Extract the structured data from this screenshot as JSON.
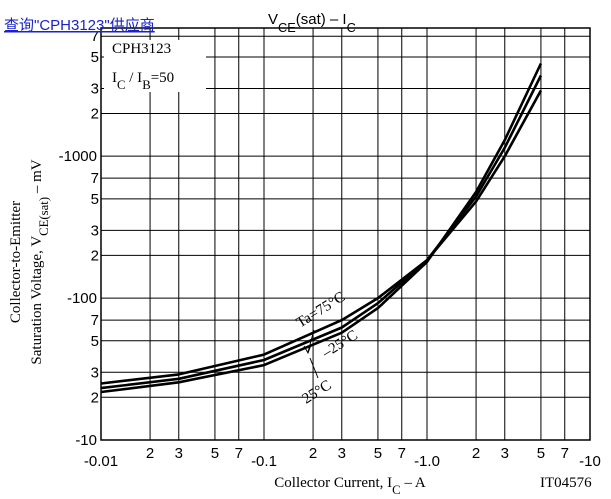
{
  "link": "查询\"CPH3123\"供应商",
  "chart_data": {
    "type": "line",
    "title": [
      "V",
      "CE",
      "(sat)  –  I",
      "C"
    ],
    "annotation": [
      "CPH3123"
    ],
    "condition": [
      "I",
      "C",
      " / I",
      "B",
      "=50"
    ],
    "y_label": [
      "Collector-to-Emitter"
    ],
    "y_label_2": [
      "Saturation Voltage, V",
      "CE(sat)",
      "  –  mV"
    ],
    "x_label": [
      "Collector Current, I",
      "C",
      "  –  A"
    ],
    "figure_code": "IT04576",
    "log_x": true,
    "log_y": true,
    "grid": true,
    "xlim": [
      -0.01,
      -10
    ],
    "xticks": [
      -0.01,
      {
        "value": -0.02,
        "label": "2"
      },
      {
        "value": -0.03,
        "label": "3"
      },
      {
        "value": -0.05,
        "label": "5"
      },
      {
        "value": -0.07,
        "label": "7"
      },
      -0.1,
      {
        "value": -0.2,
        "label": "2"
      },
      {
        "value": -0.3,
        "label": "3"
      },
      {
        "value": -0.5,
        "label": "5"
      },
      {
        "value": -0.7,
        "label": "7"
      },
      {
        "value": -1,
        "label": "-1.0"
      },
      {
        "value": -2,
        "label": "2"
      },
      {
        "value": -3,
        "label": "3"
      },
      {
        "value": -5,
        "label": "5"
      },
      {
        "value": -7,
        "label": "7"
      },
      -10
    ],
    "ylim": [
      -10,
      -8000
    ],
    "yticks": [
      -10,
      {
        "value": -20,
        "label": "2"
      },
      {
        "value": -30,
        "label": "3"
      },
      {
        "value": -50,
        "label": "5"
      },
      {
        "value": -70,
        "label": "7"
      },
      -100,
      {
        "value": -200,
        "label": "2"
      },
      {
        "value": -300,
        "label": "3"
      },
      {
        "value": -500,
        "label": "5"
      },
      {
        "value": -700,
        "label": "7"
      },
      -1000,
      {
        "value": -2000,
        "label": "2"
      },
      {
        "value": -3000,
        "label": "3"
      },
      {
        "value": -5000,
        "label": "5"
      },
      {
        "value": -7000,
        "label": "7"
      }
    ],
    "x": [
      -0.01,
      -0.03,
      -0.1,
      -0.3,
      -0.5,
      -1,
      -2,
      -3,
      -5
    ],
    "series": [
      {
        "name": "Ta=75°C",
        "color": "#000000",
        "values": [
          -25,
          -29,
          -40,
          -70,
          -100,
          -185,
          -480,
          -1000,
          -2900
        ]
      },
      {
        "name": "–25°C",
        "color": "#000000",
        "values": [
          -21.8,
          -25.5,
          -33.7,
          -57,
          -85,
          -180,
          -560,
          -1300,
          -4500
        ]
      },
      {
        "name": "25°C",
        "color": "#000000",
        "values": [
          -23.2,
          -27,
          -36.6,
          -62,
          -92,
          -185,
          -520,
          -1150,
          -3700
        ]
      }
    ]
  }
}
